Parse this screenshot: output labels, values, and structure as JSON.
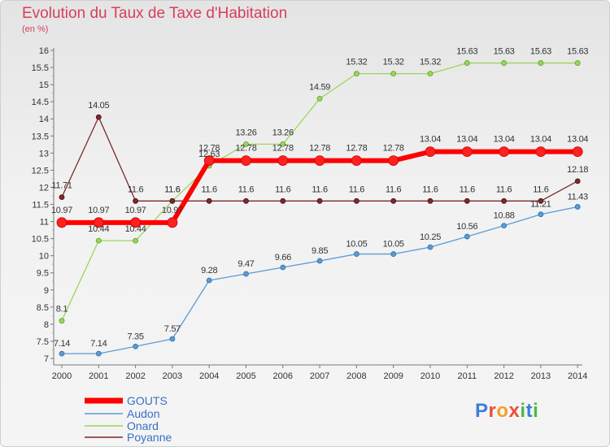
{
  "header": {
    "title": "Evolution du Taux de Taxe d'Habitation",
    "unit": "(en %)"
  },
  "logo": {
    "text": "Proxiti",
    "colors": [
      "#3d7fd6",
      "#e9503a",
      "#f0a22a",
      "#e9503a",
      "#4db849",
      "#3d7fd6",
      "#4db849"
    ]
  },
  "chart_data": {
    "type": "line",
    "title": "Evolution du Taux de Taxe d'Habitation",
    "ylabel": "(en %)",
    "xlabel": "",
    "ylim": [
      7,
      16
    ],
    "yticks": [
      "7",
      "7.5",
      "8",
      "8.5",
      "9",
      "9.5",
      "10",
      "10.5",
      "11",
      "11.5",
      "12",
      "12.5",
      "13",
      "13.5",
      "14",
      "14.5",
      "15",
      "15.5",
      "16"
    ],
    "categories": [
      "2000",
      "2001",
      "2002",
      "2003",
      "2004",
      "2005",
      "2006",
      "2007",
      "2008",
      "2009",
      "2010",
      "2011",
      "2012",
      "2013",
      "2014"
    ],
    "grid": false,
    "legend_position": "bottom-left",
    "series": [
      {
        "name": "GOUTS",
        "color": "#ff0000",
        "values": [
          10.97,
          10.97,
          10.97,
          10.97,
          12.78,
          12.78,
          12.78,
          12.78,
          12.78,
          12.78,
          13.04,
          13.04,
          13.04,
          13.04,
          13.04
        ],
        "labels": [
          "10.97",
          "10.97",
          "10.97",
          "10.97",
          "12.78",
          "12.78",
          "12.78",
          "12.78",
          "12.78",
          "12.78",
          "13.04",
          "13.04",
          "13.04",
          "13.04",
          "13.04"
        ]
      },
      {
        "name": "Audon",
        "color": "#5b9bd5",
        "values": [
          7.14,
          7.14,
          7.35,
          7.57,
          9.28,
          9.47,
          9.66,
          9.85,
          10.05,
          10.05,
          10.25,
          10.56,
          10.88,
          11.21,
          11.43
        ],
        "labels": [
          "7.14",
          "7.14",
          "7.35",
          "7.57",
          "9.28",
          "9.47",
          "9.66",
          "9.85",
          "10.05",
          "10.05",
          "10.25",
          "10.56",
          "10.88",
          "11.21",
          "11.43"
        ]
      },
      {
        "name": "Onard",
        "color": "#9ad65a",
        "values": [
          8.1,
          10.44,
          10.44,
          11.6,
          12.63,
          13.26,
          13.26,
          14.59,
          15.32,
          15.32,
          15.32,
          15.63,
          15.63,
          15.63,
          15.63
        ],
        "labels": [
          "8.1",
          "10.44",
          "10.44",
          "11.6",
          "12.63",
          "13.26",
          "13.26",
          "14.59",
          "15.32",
          "15.32",
          "15.32",
          "15.63",
          "15.63",
          "15.63",
          "15.63"
        ]
      },
      {
        "name": "Poyanne",
        "color": "#7b2a2a",
        "values": [
          11.71,
          14.05,
          11.6,
          11.6,
          11.6,
          11.6,
          11.6,
          11.6,
          11.6,
          11.6,
          11.6,
          11.6,
          11.6,
          11.6,
          12.18
        ],
        "labels": [
          "11.71",
          "14.05",
          "11.6",
          "11.6",
          "11.6",
          "11.6",
          "11.6",
          "11.6",
          "11.6",
          "11.6",
          "11.6",
          "11.6",
          "11.6",
          "11.6",
          "12.18"
        ]
      }
    ]
  }
}
